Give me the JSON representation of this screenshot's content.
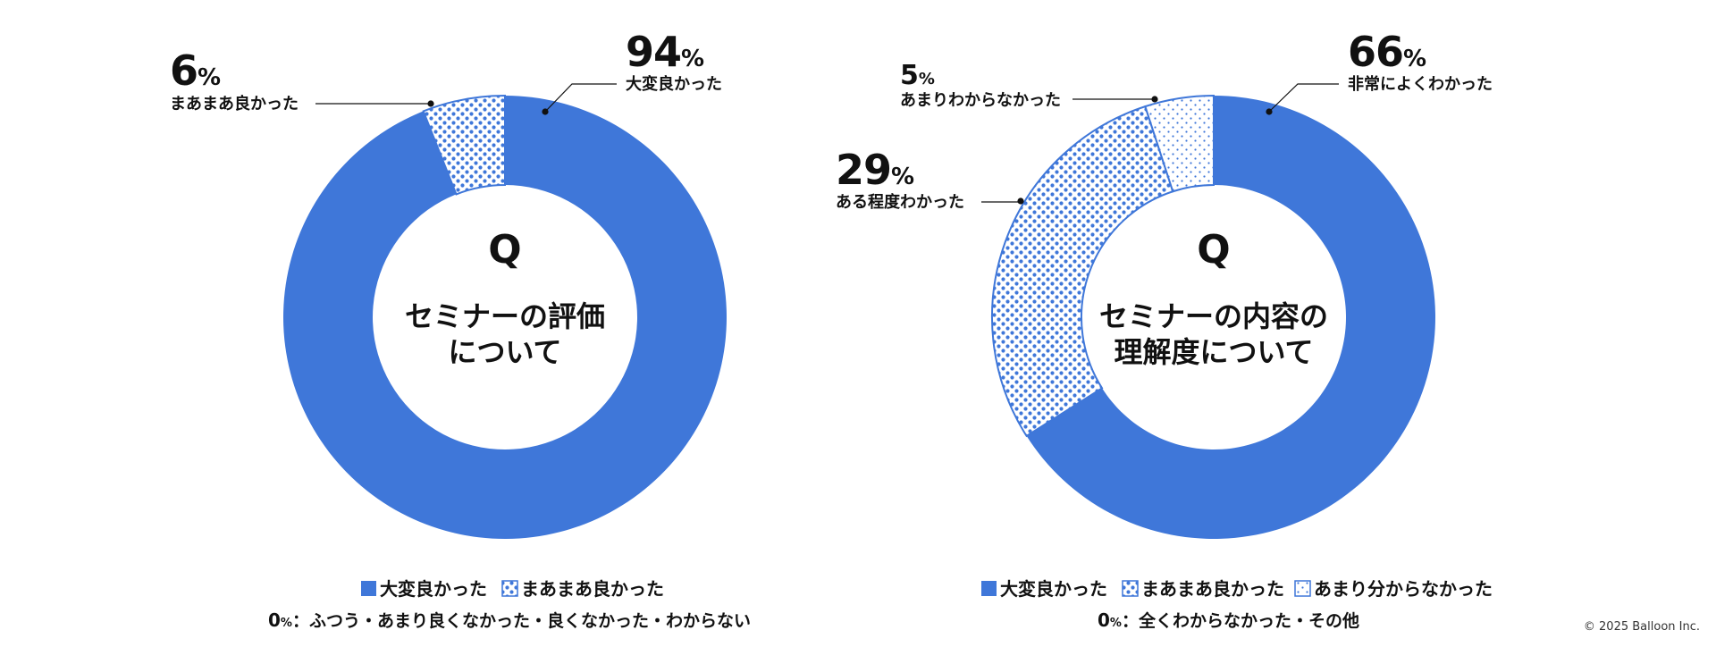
{
  "copyright": "© 2025 Balloon Inc.",
  "colors": {
    "primary": "#3F77D9",
    "dot": "#3F77D9",
    "background": "#FFFFFF",
    "text": "#111111"
  },
  "chart_data": [
    {
      "type": "pie",
      "variant": "donut",
      "title": {
        "q": "Q",
        "line1": "セミナーの評価",
        "line2": "について"
      },
      "slices": [
        {
          "name": "大変良かった",
          "value": 94,
          "pattern": "solid",
          "label": "大変良かった"
        },
        {
          "name": "まあまあ良かった",
          "value": 6,
          "pattern": "dots-dense",
          "label": "まあまあ良かった"
        }
      ],
      "legend": [
        {
          "label": "大変良かった",
          "pattern": "solid"
        },
        {
          "label": "まあまあ良かった",
          "pattern": "dots-dense"
        }
      ],
      "footnote": {
        "value": "0",
        "unit": "%",
        "sep": "：",
        "text": "ふつう・あまり良くなかった・良くなかった・わからない"
      }
    },
    {
      "type": "pie",
      "variant": "donut",
      "title": {
        "q": "Q",
        "line1": "セミナーの内容の",
        "line2": "理解度について"
      },
      "slices": [
        {
          "name": "非常によくわかった",
          "value": 66,
          "pattern": "solid",
          "label": "非常によくわかった"
        },
        {
          "name": "ある程度わかった",
          "value": 29,
          "pattern": "dots-dense",
          "label": "ある程度わかった"
        },
        {
          "name": "あまりわからなかった",
          "value": 5,
          "pattern": "dots-sparse",
          "label": "あまりわからなかった"
        }
      ],
      "legend": [
        {
          "label": "大変良かった",
          "pattern": "solid"
        },
        {
          "label": "まあまあ良かった",
          "pattern": "dots-dense"
        },
        {
          "label": "あまり分からなかった",
          "pattern": "dots-sparse"
        }
      ],
      "footnote": {
        "value": "0",
        "unit": "%",
        "sep": "：",
        "text": "全くわからなかった・その他"
      }
    }
  ]
}
